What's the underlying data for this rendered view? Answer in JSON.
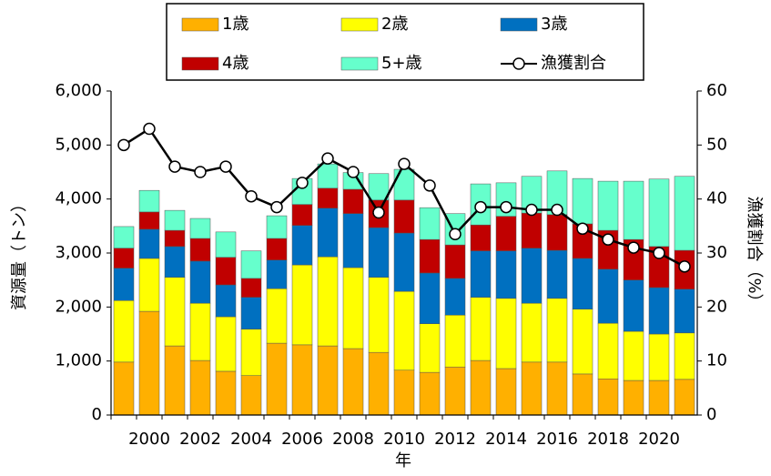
{
  "chart_data": {
    "type": "bar-line",
    "x_label": "年",
    "y_label": "資源量（トン）",
    "y2_label": "漁獲割合（%）",
    "categories": [
      null,
      "2000",
      null,
      "2002",
      null,
      "2004",
      null,
      "2006",
      null,
      "2008",
      null,
      "2010",
      null,
      "2012",
      null,
      "2014",
      null,
      "2016",
      null,
      "2018",
      null,
      "2020",
      null
    ],
    "ylim": [
      0,
      6000
    ],
    "yticks": [
      0,
      {
        "value": 1000,
        "label": "1,000"
      },
      {
        "value": 2000,
        "label": "2,000"
      },
      {
        "value": 3000,
        "label": "3,000"
      },
      {
        "value": 4000,
        "label": "4,000"
      },
      {
        "value": 5000,
        "label": "5,000"
      },
      {
        "value": 6000,
        "label": "6,000"
      }
    ],
    "y2lim": [
      0,
      60
    ],
    "y2ticks": [
      0,
      10,
      20,
      30,
      40,
      50,
      60
    ],
    "series": [
      {
        "name": "1歳",
        "type": "bar",
        "color": "#FFB000",
        "values": [
          980,
          1920,
          1280,
          1010,
          810,
          730,
          1330,
          1300,
          1280,
          1230,
          1160,
          830,
          790,
          890,
          1010,
          860,
          980,
          980,
          760,
          670,
          640,
          640,
          660
        ]
      },
      {
        "name": "2歳",
        "type": "bar",
        "color": "#FFFF00",
        "values": [
          1140,
          980,
          1270,
          1060,
          1010,
          860,
          1010,
          1480,
          1650,
          1500,
          1390,
          1460,
          900,
          960,
          1170,
          1300,
          1090,
          1180,
          1200,
          1030,
          910,
          860,
          860
        ]
      },
      {
        "name": "3歳",
        "type": "bar",
        "color": "#0070C0",
        "values": [
          600,
          540,
          570,
          780,
          590,
          590,
          530,
          730,
          900,
          1000,
          920,
          1080,
          940,
          680,
          860,
          880,
          1020,
          890,
          940,
          1000,
          950,
          860,
          810
        ]
      },
      {
        "name": "4歳",
        "type": "bar",
        "color": "#C00000",
        "values": [
          370,
          320,
          300,
          420,
          510,
          350,
          400,
          390,
          370,
          450,
          510,
          610,
          620,
          620,
          480,
          640,
          650,
          660,
          640,
          720,
          750,
          760,
          720
        ]
      },
      {
        "name": "5+歳",
        "type": "bar",
        "color": "#66FFCC",
        "values": [
          400,
          400,
          370,
          370,
          470,
          510,
          420,
          480,
          450,
          310,
          490,
          570,
          590,
          580,
          760,
          620,
          680,
          810,
          840,
          910,
          1080,
          1250,
          1370
        ]
      },
      {
        "name": "漁獲割合",
        "type": "line",
        "axis": "y2",
        "color": "#000000",
        "values": [
          50,
          53,
          46,
          45,
          46,
          40.5,
          38.5,
          43,
          47.5,
          45,
          37.5,
          46.5,
          42.5,
          33.5,
          38.5,
          38.5,
          38,
          38,
          34.5,
          32.5,
          31,
          30,
          27.5
        ]
      }
    ]
  }
}
